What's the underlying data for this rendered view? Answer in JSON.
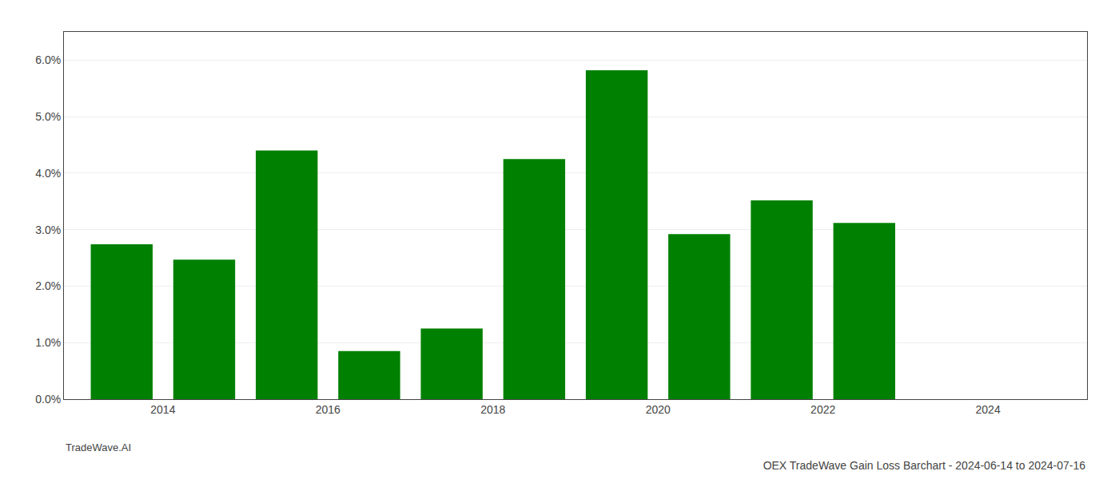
{
  "chart_data": {
    "type": "bar",
    "title": "OEX TradeWave Gain Loss Barchart - 2024-06-14 to 2024-07-16",
    "annotations": [
      "TradeWave.AI"
    ],
    "x": [
      2013,
      2014,
      2015,
      2016,
      2017,
      2018,
      2019,
      2020,
      2021,
      2022
    ],
    "values": [
      0.0274,
      0.0247,
      0.044,
      0.0085,
      0.0125,
      0.0425,
      0.0582,
      0.0292,
      0.0352,
      0.0312
    ],
    "color": "#008000",
    "xlim": [
      2012.3,
      2024.7
    ],
    "xticks": [
      {
        "value": 2013.5,
        "label": "2014"
      },
      {
        "value": 2015.5,
        "label": "2016"
      },
      {
        "value": 2017.5,
        "label": "2018"
      },
      {
        "value": 2019.5,
        "label": "2020"
      },
      {
        "value": 2021.5,
        "label": "2022"
      },
      {
        "value": 2023.5,
        "label": "2024"
      }
    ],
    "ylim": [
      0,
      0.065
    ],
    "yticks": [
      {
        "value": 0.0,
        "label": "0.0%"
      },
      {
        "value": 0.01,
        "label": "1.0%"
      },
      {
        "value": 0.02,
        "label": "2.0%"
      },
      {
        "value": 0.03,
        "label": "3.0%"
      },
      {
        "value": 0.04,
        "label": "4.0%"
      },
      {
        "value": 0.05,
        "label": "5.0%"
      },
      {
        "value": 0.06,
        "label": "6.0%"
      }
    ],
    "grid": true
  }
}
